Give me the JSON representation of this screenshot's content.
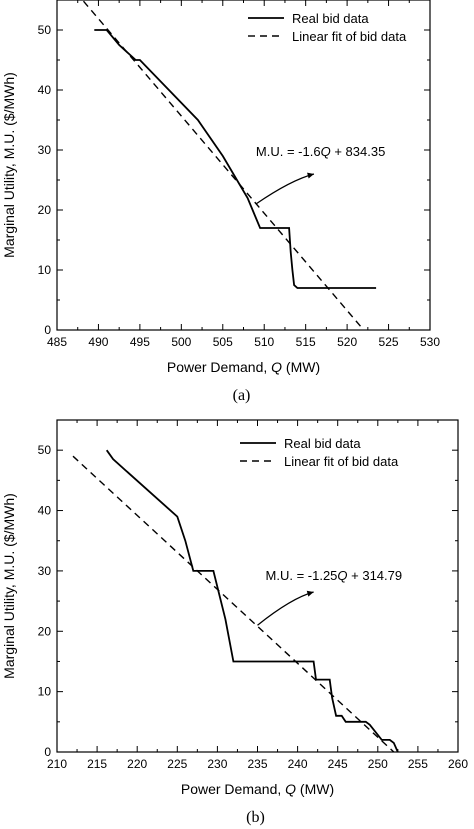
{
  "chart_data": [
    {
      "type": "line",
      "panel_label": "(a)",
      "xlabel_prefix": "Power Demand, ",
      "xlabel_var": "Q",
      "xlabel_suffix": " (MW)",
      "ylabel": "Marginal Utility, M.U. ($/MWh)",
      "xlim": [
        485,
        530
      ],
      "ylim": [
        0,
        55
      ],
      "xticks": [
        485,
        490,
        495,
        500,
        505,
        510,
        515,
        520,
        525,
        530
      ],
      "yticks": [
        0,
        10,
        20,
        30,
        40,
        50
      ],
      "legend": "top-right",
      "series": [
        {
          "name": "Real bid data",
          "style": "solid",
          "x": [
            489.5,
            491,
            492.5,
            494.5,
            495,
            502,
            505,
            508,
            509.5,
            513,
            513.2,
            513.4,
            513.6,
            514,
            523.5
          ],
          "y": [
            50,
            50,
            47.5,
            45,
            45,
            35,
            29,
            22,
            17,
            17,
            13,
            10,
            7.5,
            7,
            7
          ]
        },
        {
          "name": "Linear fit of bid data",
          "style": "dashed",
          "x": [
            488.2,
            522
          ],
          "y": [
            54.8,
            0
          ]
        }
      ],
      "annotation": {
        "prefix": "M.U. = -1.6",
        "var": "Q",
        "suffix": " + 834.35",
        "arrow_from": [
          509,
          21
        ],
        "arrow_to": [
          516,
          26
        ],
        "text_at": [
          509,
          29
        ]
      }
    },
    {
      "type": "line",
      "panel_label": "(b)",
      "xlabel_prefix": "Power Demand, ",
      "xlabel_var": "Q",
      "xlabel_suffix": " (MW)",
      "ylabel": "Marginal Utility, M.U. ($/MWh)",
      "xlim": [
        210,
        260
      ],
      "ylim": [
        0,
        55
      ],
      "xticks": [
        210,
        215,
        220,
        225,
        230,
        235,
        240,
        245,
        250,
        255,
        260
      ],
      "yticks": [
        0,
        10,
        20,
        30,
        40,
        50
      ],
      "legend": "top-right",
      "series": [
        {
          "name": "Real bid data",
          "style": "solid",
          "x": [
            216.2,
            217,
            225,
            226,
            227,
            229.5,
            231,
            232,
            242,
            242.3,
            244,
            244.3,
            244.8,
            245.5,
            246,
            248.5,
            249,
            250.5,
            251.5,
            252,
            252.5
          ],
          "y": [
            50,
            48.5,
            39,
            35,
            30,
            30,
            22,
            15,
            15,
            12,
            12,
            9,
            6,
            6,
            5,
            5,
            4.5,
            2,
            2,
            1.5,
            0
          ]
        },
        {
          "name": "Linear fit of bid data",
          "style": "dashed",
          "x": [
            212,
            252
          ],
          "y": [
            49,
            0
          ]
        }
      ],
      "annotation": {
        "prefix": "M.U. = -1.25",
        "var": "Q",
        "suffix": " + 314.79",
        "arrow_from": [
          235,
          21
        ],
        "arrow_to": [
          242,
          26.5
        ],
        "text_at": [
          236,
          28.5
        ]
      }
    }
  ]
}
